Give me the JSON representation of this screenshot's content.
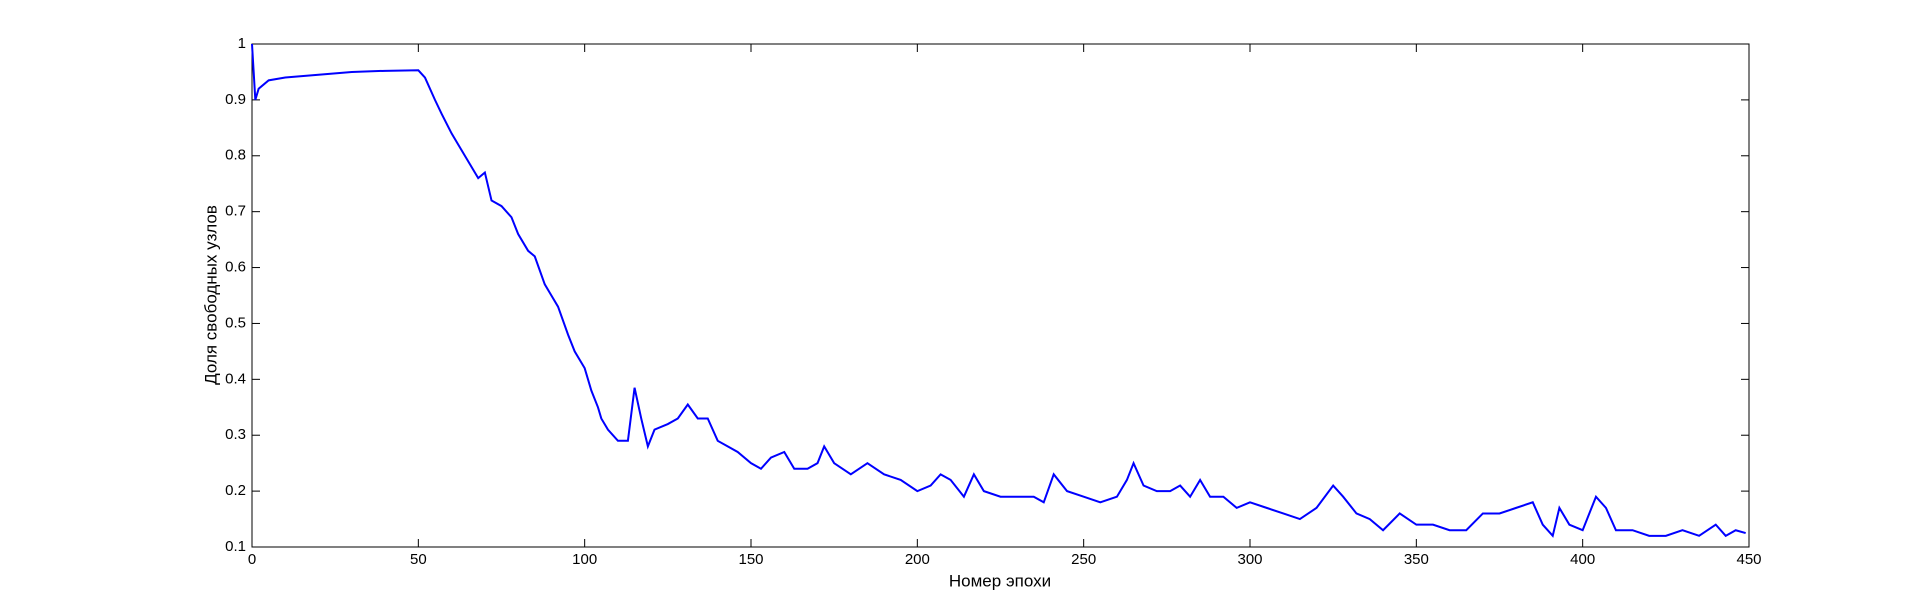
{
  "chart_data": {
    "type": "line",
    "xlabel": "Номер эпохи",
    "ylabel": "Доля свободных узлов",
    "xlim": [
      0,
      450
    ],
    "ylim": [
      0.1,
      1
    ],
    "xticks": [
      0,
      50,
      100,
      150,
      200,
      250,
      300,
      350,
      400,
      450
    ],
    "yticks": [
      0.1,
      0.2,
      0.3,
      0.4,
      0.5,
      0.6,
      0.7,
      0.8,
      0.9,
      1
    ],
    "grid": false,
    "x": [
      0,
      1,
      2,
      5,
      10,
      20,
      30,
      40,
      50,
      52,
      55,
      57,
      60,
      62,
      65,
      68,
      70,
      72,
      75,
      78,
      80,
      83,
      85,
      88,
      90,
      92,
      95,
      97,
      100,
      102,
      104,
      105,
      107,
      110,
      113,
      115,
      117,
      119,
      121,
      125,
      128,
      131,
      134,
      137,
      140,
      143,
      146,
      150,
      153,
      156,
      160,
      163,
      167,
      170,
      172,
      175,
      180,
      185,
      190,
      195,
      200,
      204,
      207,
      210,
      214,
      217,
      220,
      225,
      230,
      235,
      238,
      241,
      245,
      250,
      255,
      260,
      263,
      265,
      268,
      272,
      276,
      279,
      282,
      285,
      288,
      292,
      296,
      300,
      305,
      310,
      315,
      320,
      325,
      328,
      332,
      336,
      340,
      345,
      350,
      355,
      360,
      365,
      370,
      375,
      380,
      385,
      388,
      391,
      393,
      396,
      400,
      404,
      407,
      410,
      415,
      420,
      425,
      430,
      435,
      440,
      443,
      446,
      449
    ],
    "series": [
      {
        "color": "#0000ff",
        "values": [
          1.0,
          0.9,
          0.92,
          0.935,
          0.94,
          0.945,
          0.95,
          0.952,
          0.953,
          0.94,
          0.9,
          0.875,
          0.84,
          0.82,
          0.79,
          0.76,
          0.77,
          0.72,
          0.71,
          0.69,
          0.66,
          0.63,
          0.62,
          0.57,
          0.55,
          0.53,
          0.48,
          0.45,
          0.42,
          0.38,
          0.35,
          0.33,
          0.31,
          0.29,
          0.29,
          0.385,
          0.33,
          0.28,
          0.31,
          0.32,
          0.33,
          0.355,
          0.33,
          0.33,
          0.29,
          0.28,
          0.27,
          0.25,
          0.24,
          0.26,
          0.27,
          0.24,
          0.24,
          0.25,
          0.28,
          0.25,
          0.23,
          0.25,
          0.23,
          0.22,
          0.2,
          0.21,
          0.23,
          0.22,
          0.19,
          0.23,
          0.2,
          0.19,
          0.19,
          0.19,
          0.18,
          0.23,
          0.2,
          0.19,
          0.18,
          0.19,
          0.22,
          0.25,
          0.21,
          0.2,
          0.2,
          0.21,
          0.19,
          0.22,
          0.19,
          0.19,
          0.17,
          0.18,
          0.17,
          0.16,
          0.15,
          0.17,
          0.21,
          0.19,
          0.16,
          0.15,
          0.13,
          0.16,
          0.14,
          0.14,
          0.13,
          0.13,
          0.16,
          0.16,
          0.17,
          0.18,
          0.14,
          0.12,
          0.17,
          0.14,
          0.13,
          0.19,
          0.17,
          0.13,
          0.13,
          0.12,
          0.12,
          0.13,
          0.12,
          0.14,
          0.12,
          0.13,
          0.125
        ]
      }
    ]
  }
}
